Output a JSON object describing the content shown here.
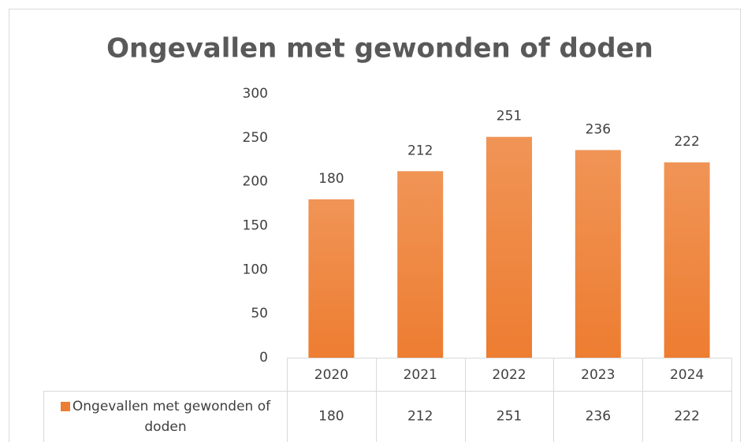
{
  "chart_data": {
    "type": "bar",
    "title": "Ongevallen met gewonden of doden",
    "categories": [
      "2020",
      "2021",
      "2022",
      "2023",
      "2024"
    ],
    "series": [
      {
        "name": "Ongevallen met gewonden of doden",
        "color": "#ed7d31",
        "values": [
          180,
          212,
          251,
          236,
          222
        ]
      }
    ],
    "ylim": [
      0,
      300
    ],
    "yticks": [
      0,
      50,
      100,
      150,
      200,
      250,
      300
    ],
    "grid": false
  }
}
